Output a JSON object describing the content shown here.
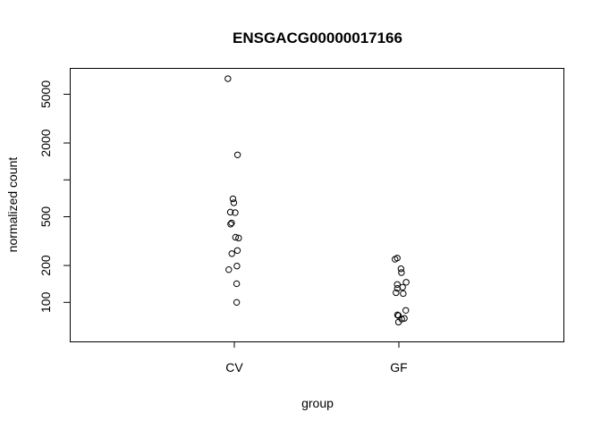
{
  "chart_data": {
    "type": "scatter",
    "title": "ENSGACG00000017166",
    "xlabel": "group",
    "ylabel": "normalized count",
    "y_scale": "log",
    "ylim": [
      48,
      8200
    ],
    "categories": [
      "CV",
      "GF"
    ],
    "y_ticks": [
      100,
      200,
      500,
      2000,
      5000
    ],
    "y_tick_labels": [
      "100",
      "200",
      "500",
      "2000",
      "5000"
    ],
    "grid": false,
    "legend": "none",
    "series": [
      {
        "category": "CV",
        "points": [
          {
            "jitter": -0.052,
            "y": 6700
          },
          {
            "jitter": 0.026,
            "y": 1600
          },
          {
            "jitter": -0.011,
            "y": 700
          },
          {
            "jitter": -0.004,
            "y": 650
          },
          {
            "jitter": -0.032,
            "y": 545
          },
          {
            "jitter": 0.007,
            "y": 540
          },
          {
            "jitter": -0.022,
            "y": 445
          },
          {
            "jitter": -0.03,
            "y": 435
          },
          {
            "jitter": 0.01,
            "y": 340
          },
          {
            "jitter": 0.035,
            "y": 335
          },
          {
            "jitter": 0.025,
            "y": 265
          },
          {
            "jitter": -0.02,
            "y": 250
          },
          {
            "jitter": 0.021,
            "y": 198
          },
          {
            "jitter": -0.045,
            "y": 185
          },
          {
            "jitter": 0.019,
            "y": 142
          },
          {
            "jitter": 0.019,
            "y": 100
          }
        ]
      },
      {
        "category": "GF",
        "points": [
          {
            "jitter": -0.031,
            "y": 225
          },
          {
            "jitter": -0.013,
            "y": 230
          },
          {
            "jitter": 0.017,
            "y": 188
          },
          {
            "jitter": 0.021,
            "y": 175
          },
          {
            "jitter": 0.059,
            "y": 146
          },
          {
            "jitter": -0.013,
            "y": 140
          },
          {
            "jitter": 0.03,
            "y": 133
          },
          {
            "jitter": -0.012,
            "y": 130
          },
          {
            "jitter": -0.023,
            "y": 120
          },
          {
            "jitter": 0.035,
            "y": 118
          },
          {
            "jitter": 0.056,
            "y": 86
          },
          {
            "jitter": -0.011,
            "y": 79
          },
          {
            "jitter": -0.003,
            "y": 78
          },
          {
            "jitter": 0.044,
            "y": 74
          },
          {
            "jitter": 0.023,
            "y": 73
          },
          {
            "jitter": -0.003,
            "y": 69
          }
        ]
      }
    ]
  }
}
